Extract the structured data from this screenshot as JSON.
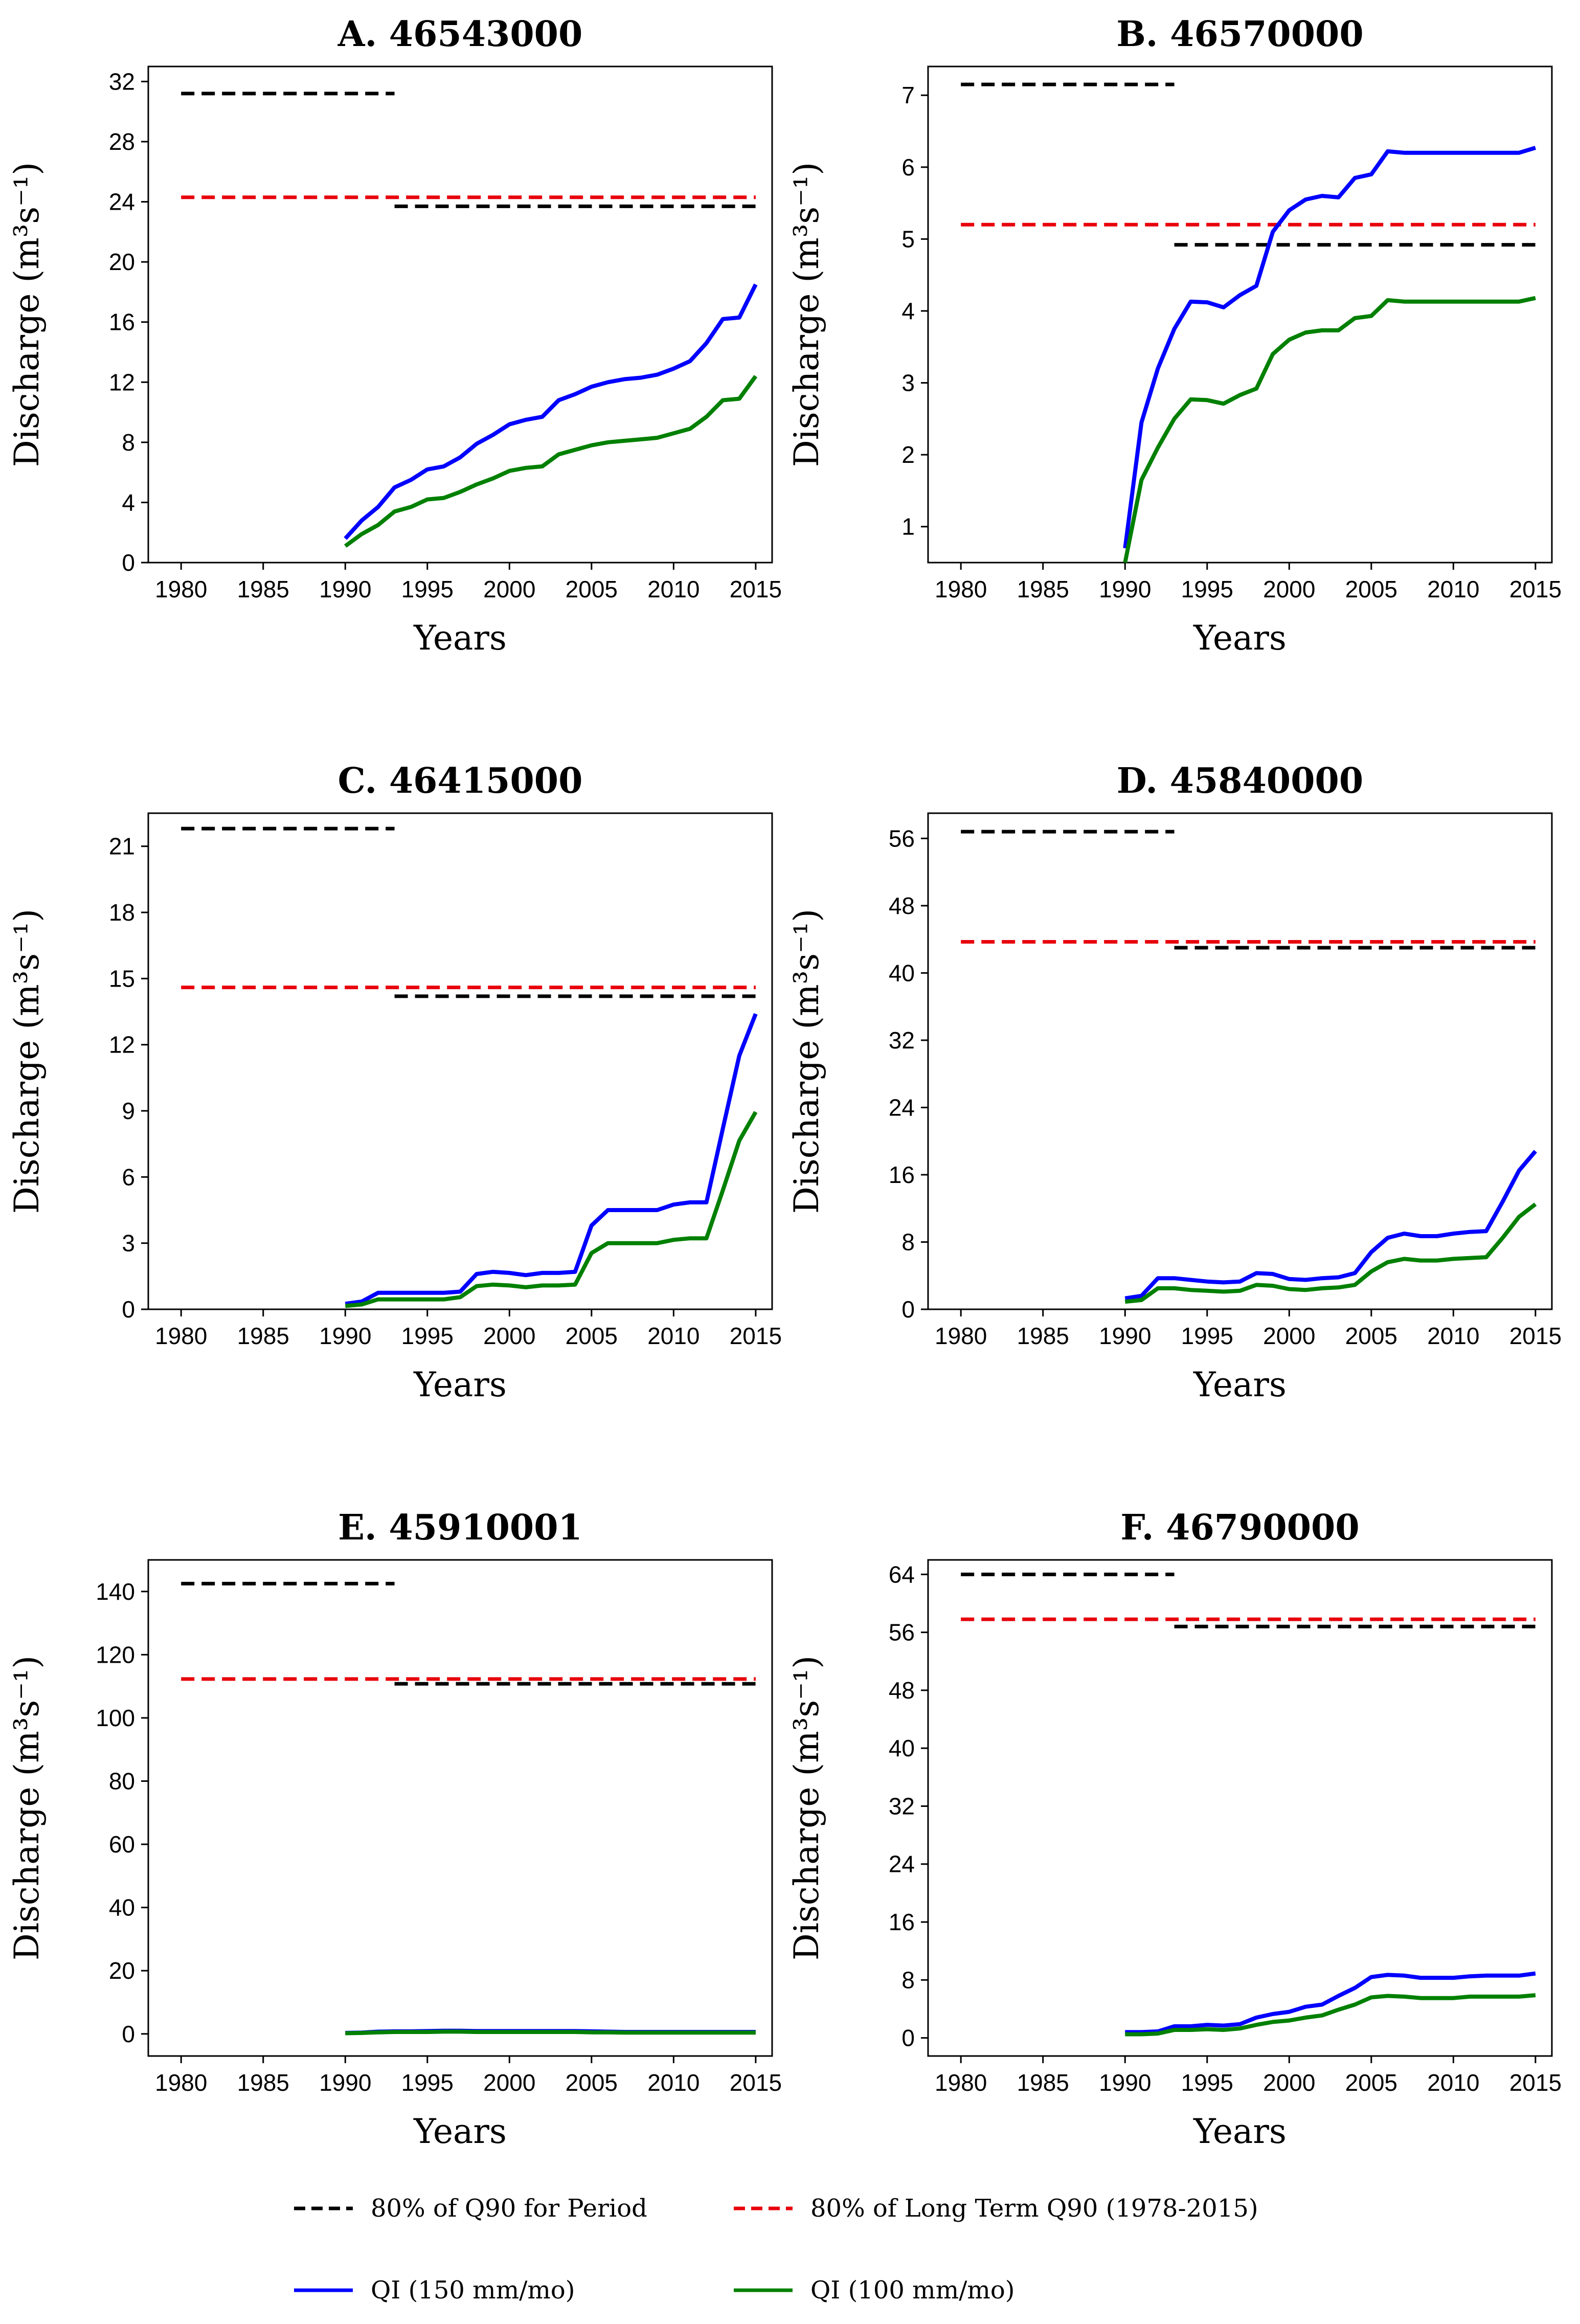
{
  "chart_data": [
    {
      "type": "line",
      "title": "A. 46543000",
      "xlabel": "Years",
      "ylabel": "Discharge (m³s⁻¹)",
      "xlim": [
        1978,
        2016
      ],
      "ylim": [
        0,
        33
      ],
      "xticks": [
        1980,
        1985,
        1990,
        1995,
        2000,
        2005,
        2010,
        2015
      ],
      "yticks": [
        0,
        4,
        8,
        12,
        16,
        20,
        24,
        28,
        32
      ],
      "reference_lines": [
        {
          "name": "80% of Q90 for Period",
          "x": [
            1980,
            1993
          ],
          "y": 31.2
        },
        {
          "name": "80% of Q90 for Period",
          "x": [
            1993,
            2015
          ],
          "y": 23.7
        },
        {
          "name": "80% of Long Term Q90 (1978-2015)",
          "x": [
            1980,
            2015
          ],
          "y": 24.3
        }
      ],
      "series": [
        {
          "name": "QI (150 mm/mo)",
          "x": [
            1990,
            1991,
            1992,
            1993,
            1994,
            1995,
            1996,
            1997,
            1998,
            1999,
            2000,
            2001,
            2002,
            2003,
            2004,
            2005,
            2006,
            2007,
            2008,
            2009,
            2010,
            2011,
            2012,
            2013,
            2014,
            2015
          ],
          "values": [
            1.6,
            2.8,
            3.7,
            5.0,
            5.5,
            6.2,
            6.4,
            7.0,
            7.9,
            8.5,
            9.2,
            9.5,
            9.7,
            10.8,
            11.2,
            11.7,
            12.0,
            12.2,
            12.3,
            12.5,
            12.9,
            13.4,
            14.6,
            16.2,
            16.3,
            18.5
          ]
        },
        {
          "name": "QI (100 mm/mo)",
          "x": [
            1990,
            1991,
            1992,
            1993,
            1994,
            1995,
            1996,
            1997,
            1998,
            1999,
            2000,
            2001,
            2002,
            2003,
            2004,
            2005,
            2006,
            2007,
            2008,
            2009,
            2010,
            2011,
            2012,
            2013,
            2014,
            2015
          ],
          "values": [
            1.1,
            1.9,
            2.5,
            3.4,
            3.7,
            4.2,
            4.3,
            4.7,
            5.2,
            5.6,
            6.1,
            6.3,
            6.4,
            7.2,
            7.5,
            7.8,
            8.0,
            8.1,
            8.2,
            8.3,
            8.6,
            8.9,
            9.7,
            10.8,
            10.9,
            12.4
          ]
        }
      ]
    },
    {
      "type": "line",
      "title": "B. 46570000",
      "xlabel": "Years",
      "ylabel": "Discharge (m³s⁻¹)",
      "xlim": [
        1978,
        2016
      ],
      "ylim": [
        0.5,
        7.4
      ],
      "xticks": [
        1980,
        1985,
        1990,
        1995,
        2000,
        2005,
        2010,
        2015
      ],
      "yticks": [
        1,
        2,
        3,
        4,
        5,
        6,
        7
      ],
      "reference_lines": [
        {
          "name": "80% of Q90 for Period",
          "x": [
            1980,
            1993
          ],
          "y": 7.15
        },
        {
          "name": "80% of Q90 for Period",
          "x": [
            1993,
            2015
          ],
          "y": 4.92
        },
        {
          "name": "80% of Long Term Q90 (1978-2015)",
          "x": [
            1980,
            2015
          ],
          "y": 5.2
        }
      ],
      "series": [
        {
          "name": "QI (150 mm/mo)",
          "x": [
            1990,
            1991,
            1992,
            1993,
            1994,
            1995,
            1996,
            1997,
            1998,
            1999,
            2000,
            2001,
            2002,
            2003,
            2004,
            2005,
            2006,
            2007,
            2008,
            2009,
            2010,
            2011,
            2012,
            2013,
            2014,
            2015
          ],
          "values": [
            0.7,
            2.45,
            3.2,
            3.75,
            4.13,
            4.12,
            4.05,
            4.22,
            4.35,
            5.1,
            5.4,
            5.55,
            5.6,
            5.58,
            5.85,
            5.9,
            6.22,
            6.2,
            6.2,
            6.2,
            6.2,
            6.2,
            6.2,
            6.2,
            6.2,
            6.27
          ]
        },
        {
          "name": "QI (100 mm/mo)",
          "x": [
            1990,
            1991,
            1992,
            1993,
            1994,
            1995,
            1996,
            1997,
            1998,
            1999,
            2000,
            2001,
            2002,
            2003,
            2004,
            2005,
            2006,
            2007,
            2008,
            2009,
            2010,
            2011,
            2012,
            2013,
            2014,
            2015
          ],
          "values": [
            0.5,
            1.65,
            2.1,
            2.5,
            2.77,
            2.76,
            2.71,
            2.83,
            2.92,
            3.4,
            3.6,
            3.7,
            3.73,
            3.73,
            3.9,
            3.93,
            4.15,
            4.13,
            4.13,
            4.13,
            4.13,
            4.13,
            4.13,
            4.13,
            4.13,
            4.18
          ]
        }
      ]
    },
    {
      "type": "line",
      "title": "C. 46415000",
      "xlabel": "Years",
      "ylabel": "Discharge (m³s⁻¹)",
      "xlim": [
        1978,
        2016
      ],
      "ylim": [
        0,
        22.5
      ],
      "xticks": [
        1980,
        1985,
        1990,
        1995,
        2000,
        2005,
        2010,
        2015
      ],
      "yticks": [
        0,
        3,
        6,
        9,
        12,
        15,
        18,
        21
      ],
      "reference_lines": [
        {
          "name": "80% of Q90 for Period",
          "x": [
            1980,
            1993
          ],
          "y": 21.8
        },
        {
          "name": "80% of Q90 for Period",
          "x": [
            1993,
            2015
          ],
          "y": 14.2
        },
        {
          "name": "80% of Long Term Q90 (1978-2015)",
          "x": [
            1980,
            2015
          ],
          "y": 14.6
        }
      ],
      "series": [
        {
          "name": "QI (150 mm/mo)",
          "x": [
            1990,
            1991,
            1992,
            1993,
            1994,
            1995,
            1996,
            1997,
            1998,
            1999,
            2000,
            2001,
            2002,
            2003,
            2004,
            2005,
            2006,
            2007,
            2008,
            2009,
            2010,
            2011,
            2012,
            2013,
            2014,
            2015
          ],
          "values": [
            0.25,
            0.35,
            0.75,
            0.75,
            0.75,
            0.75,
            0.75,
            0.8,
            1.6,
            1.7,
            1.65,
            1.55,
            1.65,
            1.65,
            1.7,
            3.8,
            4.5,
            4.5,
            4.5,
            4.5,
            4.75,
            4.85,
            4.85,
            8.2,
            11.5,
            13.4
          ]
        },
        {
          "name": "QI (100 mm/mo)",
          "x": [
            1990,
            1991,
            1992,
            1993,
            1994,
            1995,
            1996,
            1997,
            1998,
            1999,
            2000,
            2001,
            2002,
            2003,
            2004,
            2005,
            2006,
            2007,
            2008,
            2009,
            2010,
            2011,
            2012,
            2013,
            2014,
            2015
          ],
          "values": [
            0.15,
            0.22,
            0.45,
            0.45,
            0.45,
            0.45,
            0.45,
            0.55,
            1.05,
            1.12,
            1.08,
            1.0,
            1.08,
            1.08,
            1.12,
            2.55,
            3.0,
            3.0,
            3.0,
            3.0,
            3.15,
            3.22,
            3.22,
            5.4,
            7.65,
            8.95
          ]
        }
      ]
    },
    {
      "type": "line",
      "title": "D. 45840000",
      "xlabel": "Years",
      "ylabel": "Discharge (m³s⁻¹)",
      "xlim": [
        1978,
        2016
      ],
      "ylim": [
        0,
        59
      ],
      "xticks": [
        1980,
        1985,
        1990,
        1995,
        2000,
        2005,
        2010,
        2015
      ],
      "yticks": [
        0,
        8,
        16,
        24,
        32,
        40,
        48,
        56
      ],
      "reference_lines": [
        {
          "name": "80% of Q90 for Period",
          "x": [
            1980,
            1993
          ],
          "y": 56.8
        },
        {
          "name": "80% of Q90 for Period",
          "x": [
            1993,
            2015
          ],
          "y": 43.0
        },
        {
          "name": "80% of Long Term Q90 (1978-2015)",
          "x": [
            1980,
            2015
          ],
          "y": 43.7
        }
      ],
      "series": [
        {
          "name": "QI (150 mm/mo)",
          "x": [
            1990,
            1991,
            1992,
            1993,
            1994,
            1995,
            1996,
            1997,
            1998,
            1999,
            2000,
            2001,
            2002,
            2003,
            2004,
            2005,
            2006,
            2007,
            2008,
            2009,
            2010,
            2011,
            2012,
            2013,
            2014,
            2015
          ],
          "values": [
            1.3,
            1.6,
            3.7,
            3.7,
            3.5,
            3.3,
            3.2,
            3.3,
            4.3,
            4.2,
            3.6,
            3.5,
            3.7,
            3.8,
            4.3,
            6.8,
            8.5,
            9.0,
            8.7,
            8.7,
            9.0,
            9.2,
            9.3,
            12.8,
            16.5,
            18.8
          ]
        },
        {
          "name": "QI (100 mm/mo)",
          "x": [
            1990,
            1991,
            1992,
            1993,
            1994,
            1995,
            1996,
            1997,
            1998,
            1999,
            2000,
            2001,
            2002,
            2003,
            2004,
            2005,
            2006,
            2007,
            2008,
            2009,
            2010,
            2011,
            2012,
            2013,
            2014,
            2015
          ],
          "values": [
            0.9,
            1.1,
            2.5,
            2.5,
            2.3,
            2.2,
            2.1,
            2.2,
            2.9,
            2.8,
            2.4,
            2.3,
            2.5,
            2.6,
            2.9,
            4.5,
            5.6,
            6.0,
            5.8,
            5.8,
            6.0,
            6.1,
            6.2,
            8.5,
            11.0,
            12.5
          ]
        }
      ]
    },
    {
      "type": "line",
      "title": "E. 45910001",
      "xlabel": "Years",
      "ylabel": "Discharge (m³s⁻¹)",
      "xlim": [
        1978,
        2016
      ],
      "ylim": [
        -7,
        150
      ],
      "xticks": [
        1980,
        1985,
        1990,
        1995,
        2000,
        2005,
        2010,
        2015
      ],
      "yticks": [
        0,
        20,
        40,
        60,
        80,
        100,
        120,
        140
      ],
      "reference_lines": [
        {
          "name": "80% of Q90 for Period",
          "x": [
            1980,
            1993
          ],
          "y": 142.5
        },
        {
          "name": "80% of Q90 for Period",
          "x": [
            1993,
            2015
          ],
          "y": 110.8
        },
        {
          "name": "80% of Long Term Q90 (1978-2015)",
          "x": [
            1980,
            2015
          ],
          "y": 112.3
        }
      ],
      "series": [
        {
          "name": "QI (150 mm/mo)",
          "x": [
            1990,
            1991,
            1992,
            1993,
            1994,
            1995,
            1996,
            1997,
            1998,
            1999,
            2000,
            2001,
            2002,
            2003,
            2004,
            2005,
            2006,
            2007,
            2008,
            2009,
            2010,
            2011,
            2012,
            2013,
            2014,
            2015
          ],
          "values": [
            0.3,
            0.4,
            0.7,
            0.8,
            0.8,
            0.9,
            1.0,
            1.0,
            0.9,
            0.9,
            0.9,
            0.9,
            0.9,
            0.9,
            0.9,
            0.8,
            0.7,
            0.6,
            0.6,
            0.6,
            0.6,
            0.6,
            0.6,
            0.6,
            0.6,
            0.6
          ]
        },
        {
          "name": "QI (100 mm/mo)",
          "x": [
            1990,
            1991,
            1992,
            1993,
            1994,
            1995,
            1996,
            1997,
            1998,
            1999,
            2000,
            2001,
            2002,
            2003,
            2004,
            2005,
            2006,
            2007,
            2008,
            2009,
            2010,
            2011,
            2012,
            2013,
            2014,
            2015
          ],
          "values": [
            0.2,
            0.3,
            0.5,
            0.6,
            0.6,
            0.6,
            0.7,
            0.7,
            0.6,
            0.6,
            0.6,
            0.6,
            0.6,
            0.6,
            0.6,
            0.5,
            0.5,
            0.4,
            0.4,
            0.4,
            0.4,
            0.4,
            0.4,
            0.4,
            0.4,
            0.4
          ]
        }
      ]
    },
    {
      "type": "line",
      "title": "F. 46790000",
      "xlabel": "Years",
      "ylabel": "Discharge (m³s⁻¹)",
      "xlim": [
        1978,
        2016
      ],
      "ylim": [
        -2.5,
        66
      ],
      "xticks": [
        1980,
        1985,
        1990,
        1995,
        2000,
        2005,
        2010,
        2015
      ],
      "yticks": [
        0,
        8,
        16,
        24,
        32,
        40,
        48,
        56,
        64
      ],
      "reference_lines": [
        {
          "name": "80% of Q90 for Period",
          "x": [
            1980,
            1993
          ],
          "y": 64.0
        },
        {
          "name": "80% of Q90 for Period",
          "x": [
            1993,
            2015
          ],
          "y": 56.8
        },
        {
          "name": "80% of Long Term Q90 (1978-2015)",
          "x": [
            1980,
            2015
          ],
          "y": 57.8
        }
      ],
      "series": [
        {
          "name": "QI (150 mm/mo)",
          "x": [
            1990,
            1991,
            1992,
            1993,
            1994,
            1995,
            1996,
            1997,
            1998,
            1999,
            2000,
            2001,
            2002,
            2003,
            2004,
            2005,
            2006,
            2007,
            2008,
            2009,
            2010,
            2011,
            2012,
            2013,
            2014,
            2015
          ],
          "values": [
            0.8,
            0.8,
            0.9,
            1.6,
            1.6,
            1.8,
            1.7,
            1.9,
            2.8,
            3.3,
            3.6,
            4.3,
            4.6,
            5.8,
            6.9,
            8.4,
            8.7,
            8.6,
            8.3,
            8.3,
            8.3,
            8.5,
            8.6,
            8.6,
            8.6,
            8.9
          ]
        },
        {
          "name": "QI (100 mm/mo)",
          "x": [
            1990,
            1991,
            1992,
            1993,
            1994,
            1995,
            1996,
            1997,
            1998,
            1999,
            2000,
            2001,
            2002,
            2003,
            2004,
            2005,
            2006,
            2007,
            2008,
            2009,
            2010,
            2011,
            2012,
            2013,
            2014,
            2015
          ],
          "values": [
            0.5,
            0.5,
            0.6,
            1.1,
            1.1,
            1.2,
            1.1,
            1.3,
            1.8,
            2.2,
            2.4,
            2.8,
            3.1,
            3.9,
            4.6,
            5.6,
            5.8,
            5.7,
            5.5,
            5.5,
            5.5,
            5.7,
            5.7,
            5.7,
            5.7,
            5.9
          ]
        }
      ]
    }
  ],
  "legend": {
    "items": [
      {
        "label": "80% of Q90 for Period",
        "color": "#000000",
        "style": "dashed"
      },
      {
        "label": "80% of Long Term Q90 (1978-2015)",
        "color": "#e8000b",
        "style": "dashed"
      },
      {
        "label": "QI (150 mm/mo)",
        "color": "#0000ff",
        "style": "solid"
      },
      {
        "label": "QI (100 mm/mo)",
        "color": "#008000",
        "style": "solid"
      }
    ]
  },
  "colors": {
    "period_q90": "#000000",
    "long_term_q90": "#e8000b",
    "qi_150": "#0000ff",
    "qi_100": "#008000"
  }
}
